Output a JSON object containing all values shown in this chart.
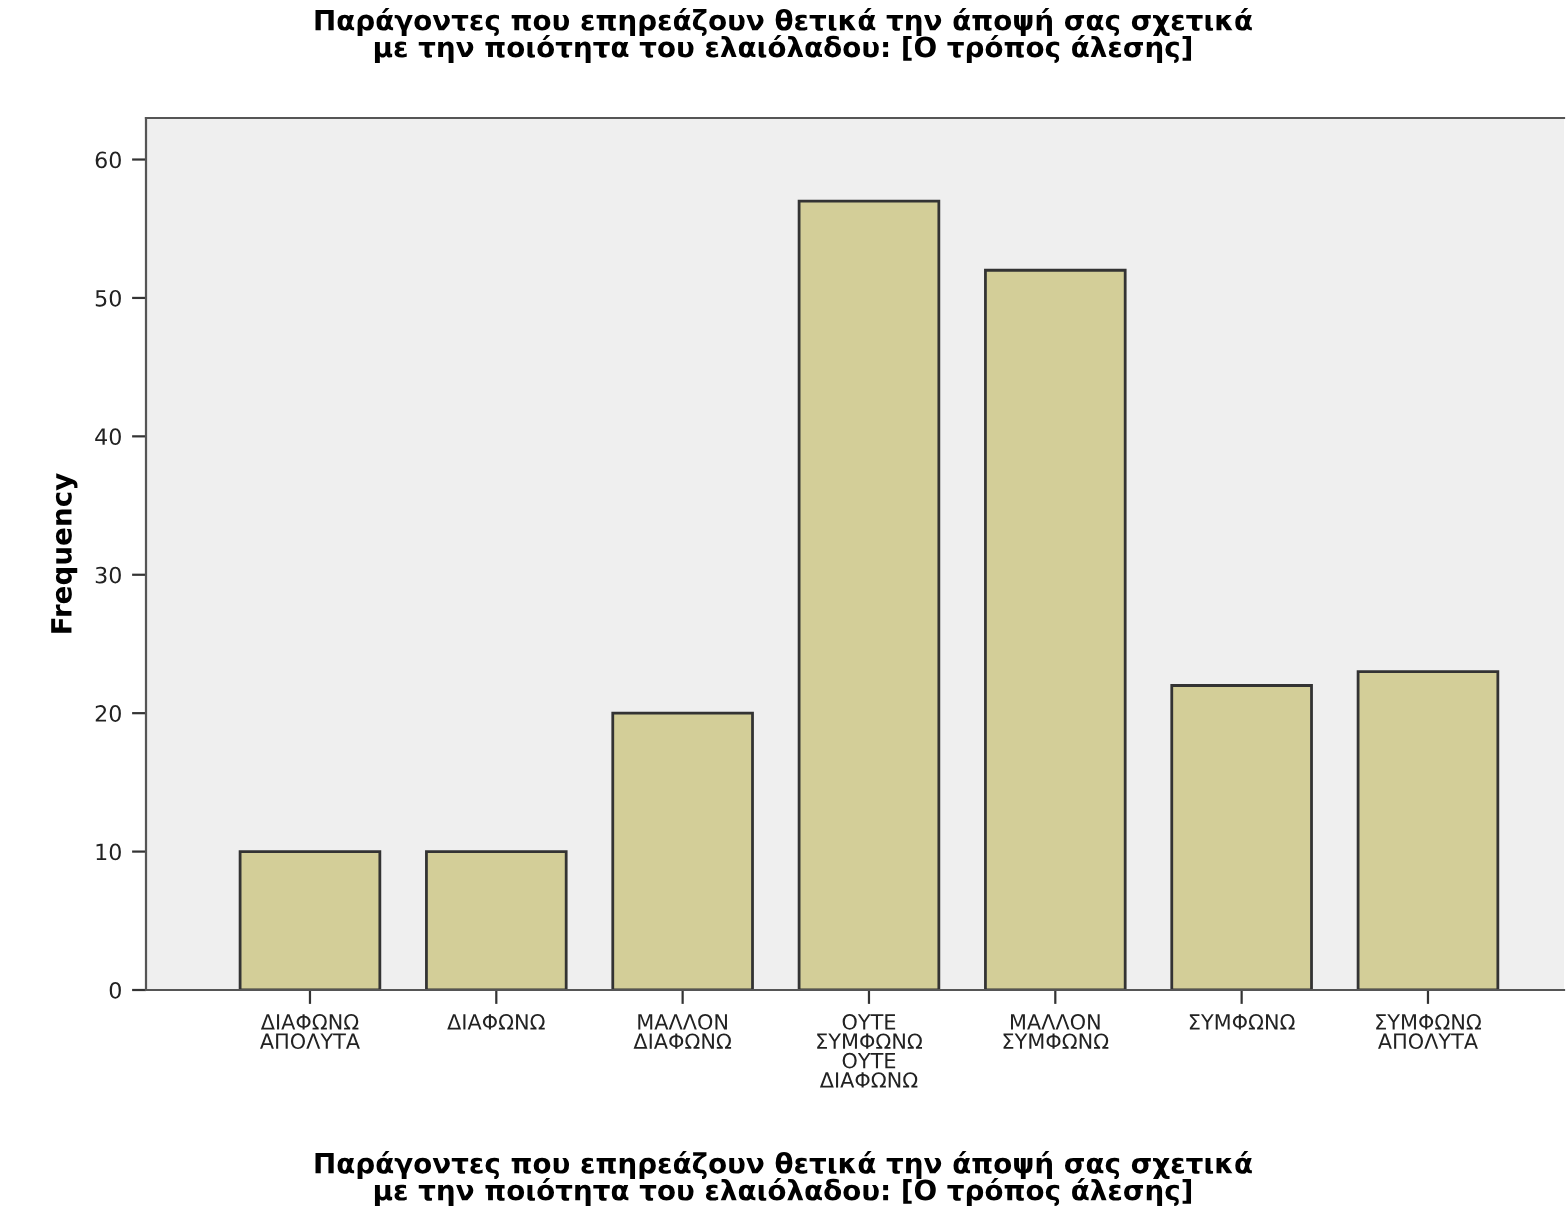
{
  "chart_data": {
    "type": "bar",
    "title": "Παράγοντες που επηρεάζουν θετικά την άποψή σας σχετικά με την ποιότητα του ελαιόλαδου: [Ο τρόπος άλεσης]",
    "xlabel": "Παράγοντες που επηρεάζουν θετικά την άποψή σας σχετικά με την ποιότητα του ελαιόλαδου: [Ο τρόπος άλεσης]",
    "ylabel": "Frequency",
    "categories": [
      "ΔΙΑΦΩΝΩ ΑΠΟΛΥΤΑ",
      "ΔΙΑΦΩΝΩ",
      "ΜΑΛΛΟΝ ΔΙΑΦΩΝΩ",
      "ΟΥΤΕ ΣΥΜΦΩΝΩ ΟΥΤΕ ΔΙΑΦΩΝΩ",
      "ΜΑΛΛΟΝ ΣΥΜΦΩΝΩ",
      "ΣΥΜΦΩΝΩ",
      "ΣΥΜΦΩΝΩ ΑΠΟΛΥΤΑ"
    ],
    "values": [
      10,
      10,
      20,
      57,
      52,
      22,
      23
    ],
    "color": "#d3ce98",
    "ylim": [
      0,
      63
    ],
    "yticks": [
      0,
      10,
      20,
      30,
      40,
      50,
      60
    ],
    "grid": false
  }
}
